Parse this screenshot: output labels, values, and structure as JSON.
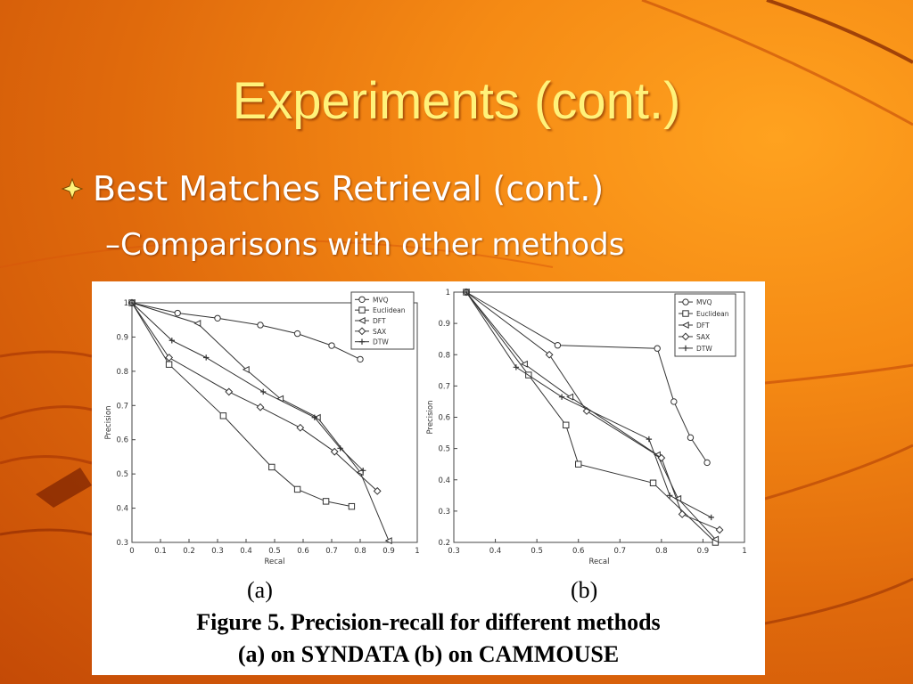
{
  "slide": {
    "title": "Experiments (cont.)",
    "bullet": "Best Matches Retrieval (cont.)",
    "sub_bullet": "Comparisons with other methods"
  },
  "figure": {
    "label_a": "(a)",
    "label_b": "(b)",
    "caption_line1": "Figure 5.  Precision-recall for different methods",
    "caption_line2": "(a) on SYNDATA  (b) on CAMMOUSE"
  },
  "colors": {
    "title": "#fff27a",
    "text": "#ffffff",
    "chart_line": "#333333"
  },
  "chart_data": [
    {
      "type": "line",
      "panel": "(a)",
      "xlabel": "Recal",
      "ylabel": "Precision",
      "xlim": [
        0,
        1
      ],
      "ylim": [
        0.3,
        1
      ],
      "xticks": [
        0,
        0.1,
        0.2,
        0.3,
        0.4,
        0.5,
        0.6,
        0.7,
        0.8,
        0.9,
        1
      ],
      "yticks": [
        0.3,
        0.4,
        0.5,
        0.6,
        0.7,
        0.8,
        0.9,
        1
      ],
      "xtick_labels": [
        "0",
        "0.1",
        "0.2",
        "0.3",
        "0.4",
        "0.5",
        "0.6",
        "0.7",
        "0.8",
        "0.9",
        "1"
      ],
      "ytick_labels": [
        "0.3",
        "0.4",
        "0.5",
        "0.6",
        "0.7",
        "0.8",
        "0.9",
        "1"
      ],
      "legend_position": "top-right",
      "grid": false,
      "series": [
        {
          "name": "MVQ",
          "marker": "circle",
          "x": [
            0,
            0.16,
            0.3,
            0.45,
            0.58,
            0.7,
            0.8
          ],
          "y": [
            1,
            0.97,
            0.955,
            0.935,
            0.91,
            0.875,
            0.835
          ]
        },
        {
          "name": "Euclidean",
          "marker": "square",
          "x": [
            0,
            0.13,
            0.32,
            0.49,
            0.58,
            0.68,
            0.77
          ],
          "y": [
            1,
            0.82,
            0.67,
            0.52,
            0.455,
            0.42,
            0.405
          ]
        },
        {
          "name": "DFT",
          "marker": "triangle",
          "x": [
            0,
            0.23,
            0.4,
            0.52,
            0.65,
            0.8,
            0.9
          ],
          "y": [
            1,
            0.94,
            0.805,
            0.72,
            0.665,
            0.505,
            0.305
          ]
        },
        {
          "name": "SAX",
          "marker": "diamond",
          "x": [
            0,
            0.13,
            0.34,
            0.45,
            0.59,
            0.71,
            0.86
          ],
          "y": [
            1,
            0.84,
            0.74,
            0.695,
            0.635,
            0.565,
            0.45
          ]
        },
        {
          "name": "DTW",
          "marker": "plus",
          "x": [
            0,
            0.14,
            0.26,
            0.46,
            0.64,
            0.73,
            0.81
          ],
          "y": [
            1,
            0.89,
            0.84,
            0.74,
            0.665,
            0.575,
            0.51
          ]
        }
      ]
    },
    {
      "type": "line",
      "panel": "(b)",
      "xlabel": "Recal",
      "ylabel": "Precision",
      "xlim": [
        0.3,
        1
      ],
      "ylim": [
        0.2,
        1
      ],
      "xticks": [
        0.3,
        0.4,
        0.5,
        0.6,
        0.7,
        0.8,
        0.9,
        1
      ],
      "yticks": [
        0.2,
        0.3,
        0.4,
        0.5,
        0.6,
        0.7,
        0.8,
        0.9,
        1
      ],
      "xtick_labels": [
        "0.3",
        "0.4",
        "0.5",
        "0.6",
        "0.7",
        "0.8",
        "0.9",
        "1"
      ],
      "ytick_labels": [
        "0.2",
        "0.3",
        "0.4",
        "0.5",
        "0.6",
        "0.7",
        "0.8",
        "0.9",
        "1"
      ],
      "legend_position": "top-right",
      "grid": false,
      "series": [
        {
          "name": "MVQ",
          "marker": "circle",
          "x": [
            0.33,
            0.55,
            0.79,
            0.83,
            0.87,
            0.91
          ],
          "y": [
            1,
            0.83,
            0.82,
            0.65,
            0.535,
            0.455
          ]
        },
        {
          "name": "Euclidean",
          "marker": "square",
          "x": [
            0.33,
            0.48,
            0.57,
            0.6,
            0.78,
            0.93
          ],
          "y": [
            1,
            0.735,
            0.575,
            0.45,
            0.39,
            0.2
          ]
        },
        {
          "name": "DFT",
          "marker": "triangle",
          "x": [
            0.33,
            0.47,
            0.58,
            0.79,
            0.84,
            0.93
          ],
          "y": [
            1,
            0.77,
            0.665,
            0.48,
            0.34,
            0.21
          ]
        },
        {
          "name": "SAX",
          "marker": "diamond",
          "x": [
            0.33,
            0.53,
            0.62,
            0.8,
            0.85,
            0.94
          ],
          "y": [
            1,
            0.8,
            0.62,
            0.47,
            0.29,
            0.24
          ]
        },
        {
          "name": "DTW",
          "marker": "plus",
          "x": [
            0.33,
            0.45,
            0.56,
            0.77,
            0.82,
            0.92
          ],
          "y": [
            1,
            0.76,
            0.665,
            0.53,
            0.35,
            0.28
          ]
        }
      ]
    }
  ]
}
